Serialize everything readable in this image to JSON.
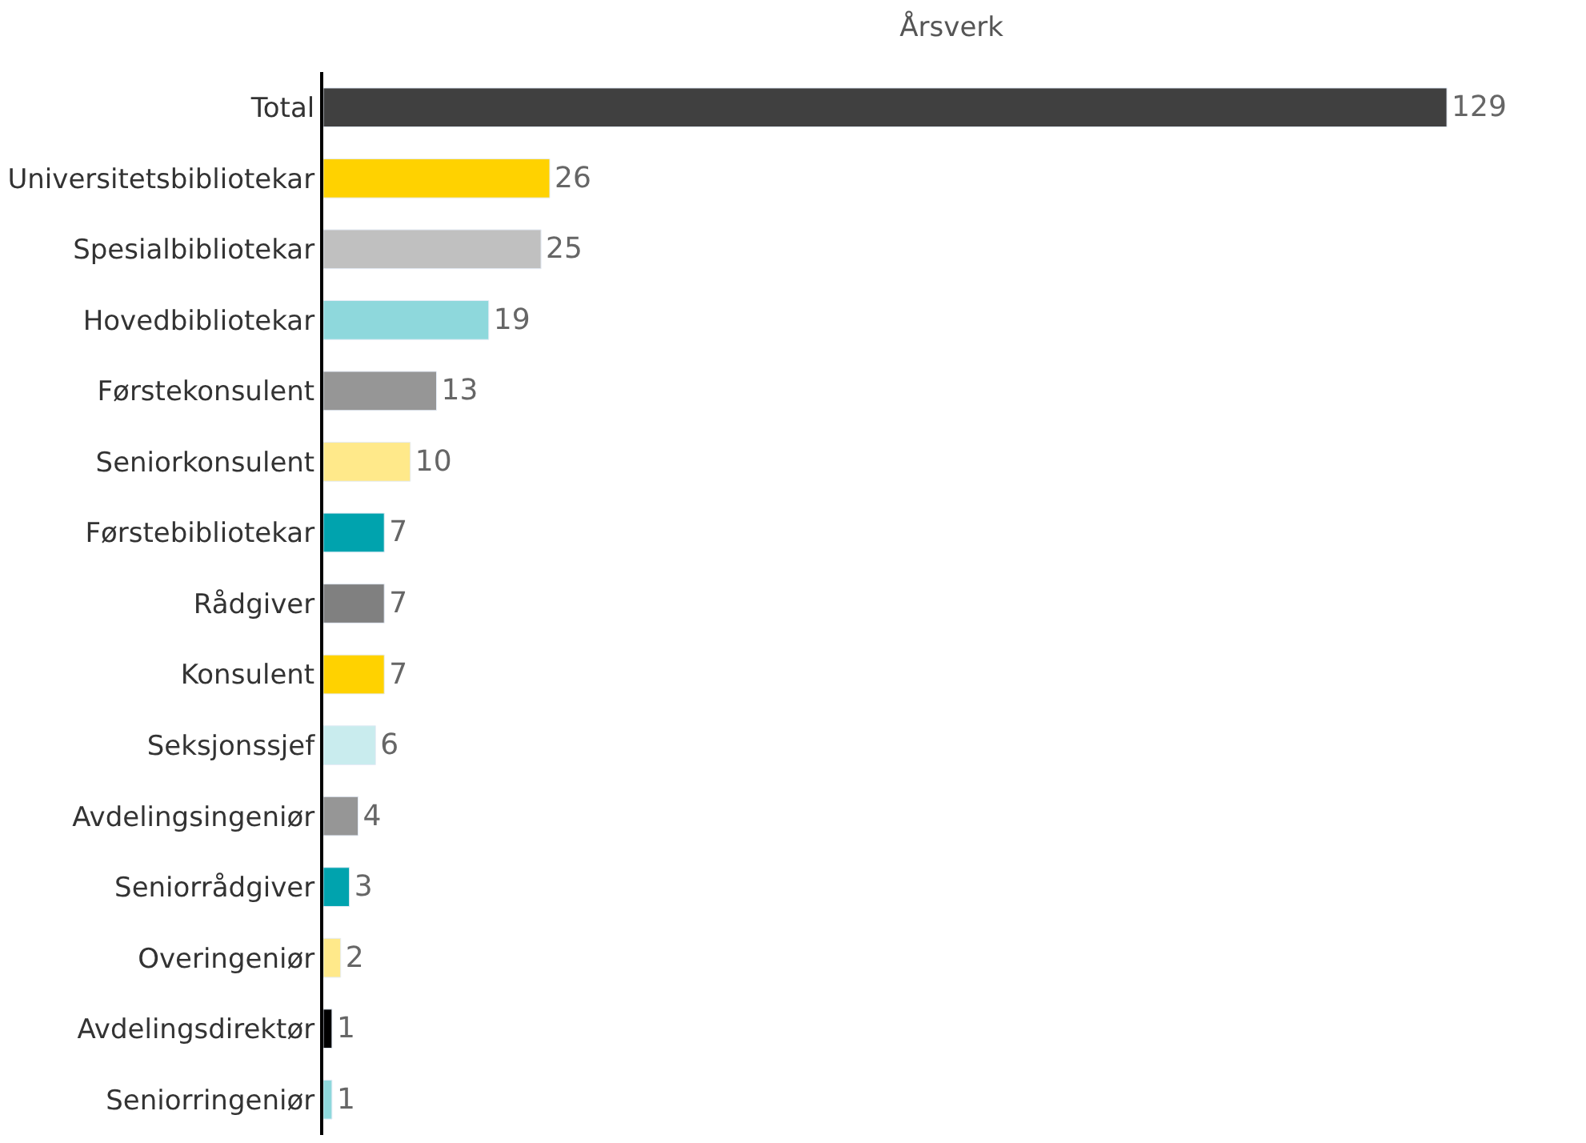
{
  "chart_data": {
    "type": "bar",
    "orientation": "horizontal",
    "title": "Årsverk",
    "categories": [
      "Total",
      "Universitetsbibliotekar",
      "Spesialbibliotekar",
      "Hovedbibliotekar",
      "Førstekonsulent",
      "Seniorkonsulent",
      "Førstebibliotekar",
      "Rådgiver",
      "Konsulent",
      "Seksjonssjef",
      "Avdelingsingeniør",
      "Seniorrådgiver",
      "Overingeniør",
      "Avdelingsdirektør",
      "Seniorringeniør"
    ],
    "values": [
      129,
      26,
      25,
      19,
      13,
      10,
      7,
      7,
      7,
      6,
      4,
      3,
      2,
      1,
      1
    ],
    "colors": [
      "#404040",
      "#ffd200",
      "#c0c0c0",
      "#8ed8dc",
      "#969696",
      "#ffe98a",
      "#00a3ae",
      "#808080",
      "#ffd200",
      "#c9ecee",
      "#969696",
      "#00a3ae",
      "#ffe98a",
      "#000000",
      "#8ed8dc"
    ],
    "data_labels": true,
    "tick_labels": "y"
  }
}
